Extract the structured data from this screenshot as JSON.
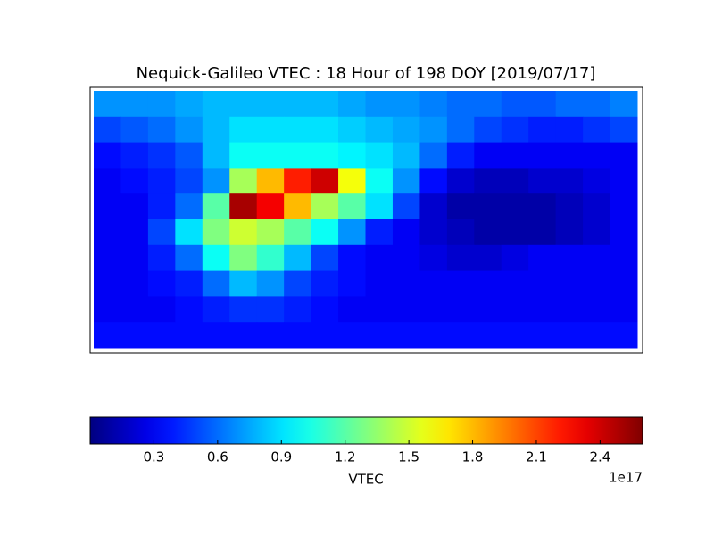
{
  "chart_data": {
    "type": "heatmap",
    "title": "Nequick-Galileo VTEC : 18 Hour of 198 DOY [2019/07/17]",
    "colorbar_label": "VTEC",
    "colorbar_offset": "1e17",
    "colormap": "jet",
    "clim": [
      0,
      2.6
    ],
    "cticks": [
      0.3,
      0.6,
      0.9,
      1.2,
      1.5,
      1.8,
      2.1,
      2.4
    ],
    "z": [
      [
        0.7,
        0.7,
        0.7,
        0.75,
        0.8,
        0.8,
        0.8,
        0.8,
        0.8,
        0.75,
        0.7,
        0.7,
        0.65,
        0.6,
        0.6,
        0.55,
        0.55,
        0.6,
        0.6,
        0.65
      ],
      [
        0.5,
        0.55,
        0.6,
        0.7,
        0.8,
        0.9,
        0.9,
        0.9,
        0.9,
        0.85,
        0.8,
        0.75,
        0.7,
        0.6,
        0.5,
        0.45,
        0.4,
        0.4,
        0.45,
        0.5
      ],
      [
        0.35,
        0.4,
        0.45,
        0.55,
        0.8,
        1.0,
        1.0,
        1.0,
        1.0,
        0.95,
        0.9,
        0.8,
        0.6,
        0.4,
        0.3,
        0.3,
        0.3,
        0.3,
        0.3,
        0.3
      ],
      [
        0.3,
        0.35,
        0.4,
        0.5,
        0.7,
        1.4,
        1.8,
        2.2,
        2.4,
        1.6,
        1.0,
        0.7,
        0.35,
        0.2,
        0.15,
        0.15,
        0.2,
        0.2,
        0.25,
        0.3
      ],
      [
        0.3,
        0.3,
        0.4,
        0.6,
        1.2,
        2.5,
        2.3,
        1.8,
        1.4,
        1.2,
        0.9,
        0.5,
        0.2,
        0.1,
        0.1,
        0.1,
        0.1,
        0.15,
        0.2,
        0.3
      ],
      [
        0.3,
        0.3,
        0.5,
        0.9,
        1.3,
        1.5,
        1.4,
        1.2,
        1.0,
        0.7,
        0.4,
        0.3,
        0.2,
        0.15,
        0.1,
        0.1,
        0.1,
        0.15,
        0.2,
        0.3
      ],
      [
        0.3,
        0.3,
        0.4,
        0.6,
        1.0,
        1.3,
        1.1,
        0.8,
        0.5,
        0.35,
        0.3,
        0.3,
        0.25,
        0.2,
        0.2,
        0.25,
        0.3,
        0.3,
        0.3,
        0.3
      ],
      [
        0.3,
        0.3,
        0.35,
        0.4,
        0.6,
        0.8,
        0.7,
        0.5,
        0.4,
        0.35,
        0.3,
        0.3,
        0.3,
        0.3,
        0.3,
        0.3,
        0.3,
        0.3,
        0.3,
        0.3
      ],
      [
        0.3,
        0.3,
        0.3,
        0.35,
        0.4,
        0.45,
        0.45,
        0.4,
        0.35,
        0.3,
        0.3,
        0.3,
        0.3,
        0.3,
        0.3,
        0.3,
        0.3,
        0.3,
        0.3,
        0.3
      ],
      [
        0.35,
        0.35,
        0.35,
        0.35,
        0.35,
        0.35,
        0.35,
        0.35,
        0.35,
        0.35,
        0.35,
        0.35,
        0.35,
        0.35,
        0.35,
        0.35,
        0.35,
        0.35,
        0.35,
        0.35
      ]
    ]
  }
}
